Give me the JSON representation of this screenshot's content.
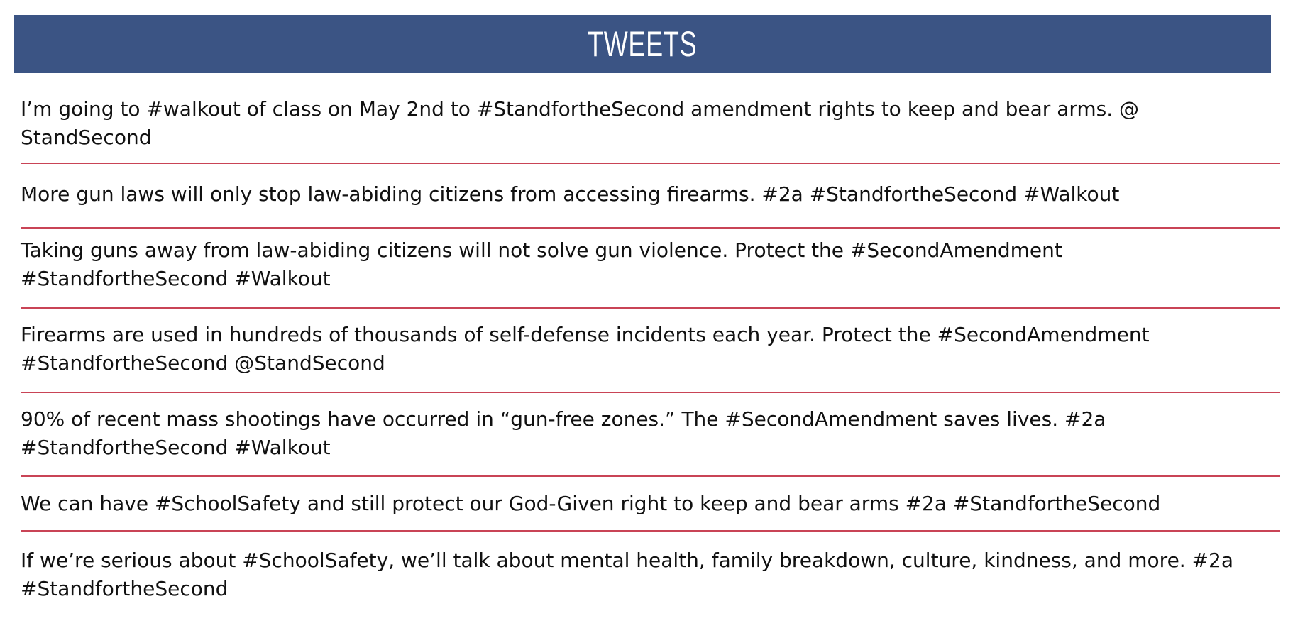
{
  "header": {
    "title": "TWEETS",
    "background_color": "#3b5484"
  },
  "divider_color": "#c94456",
  "tweets": [
    "I’m going to #walkout of class on May 2nd to #StandfortheSecond amendment rights to keep and bear arms. @\nStandSecond",
    "More gun laws will only stop law-abiding citizens from accessing firearms. #2a #StandfortheSecond #Walkout",
    "Taking guns away from law-abiding citizens will not solve gun violence. Protect the #SecondAmendment\n#StandfortheSecond #Walkout",
    "Firearms are used in hundreds of thousands of self-defense incidents each year. Protect the #SecondAmendment\n#StandfortheSecond @StandSecond",
    "90% of recent mass shootings have occurred in “gun-free zones.” The #SecondAmendment saves lives. #2a\n#StandfortheSecond #Walkout",
    "We can have #SchoolSafety and still protect our God-Given right to keep and bear arms #2a #StandfortheSecond",
    "If we’re serious about #SchoolSafety, we’ll talk about mental health, family breakdown, culture, kindness, and more. #2a\n#StandfortheSecond"
  ]
}
